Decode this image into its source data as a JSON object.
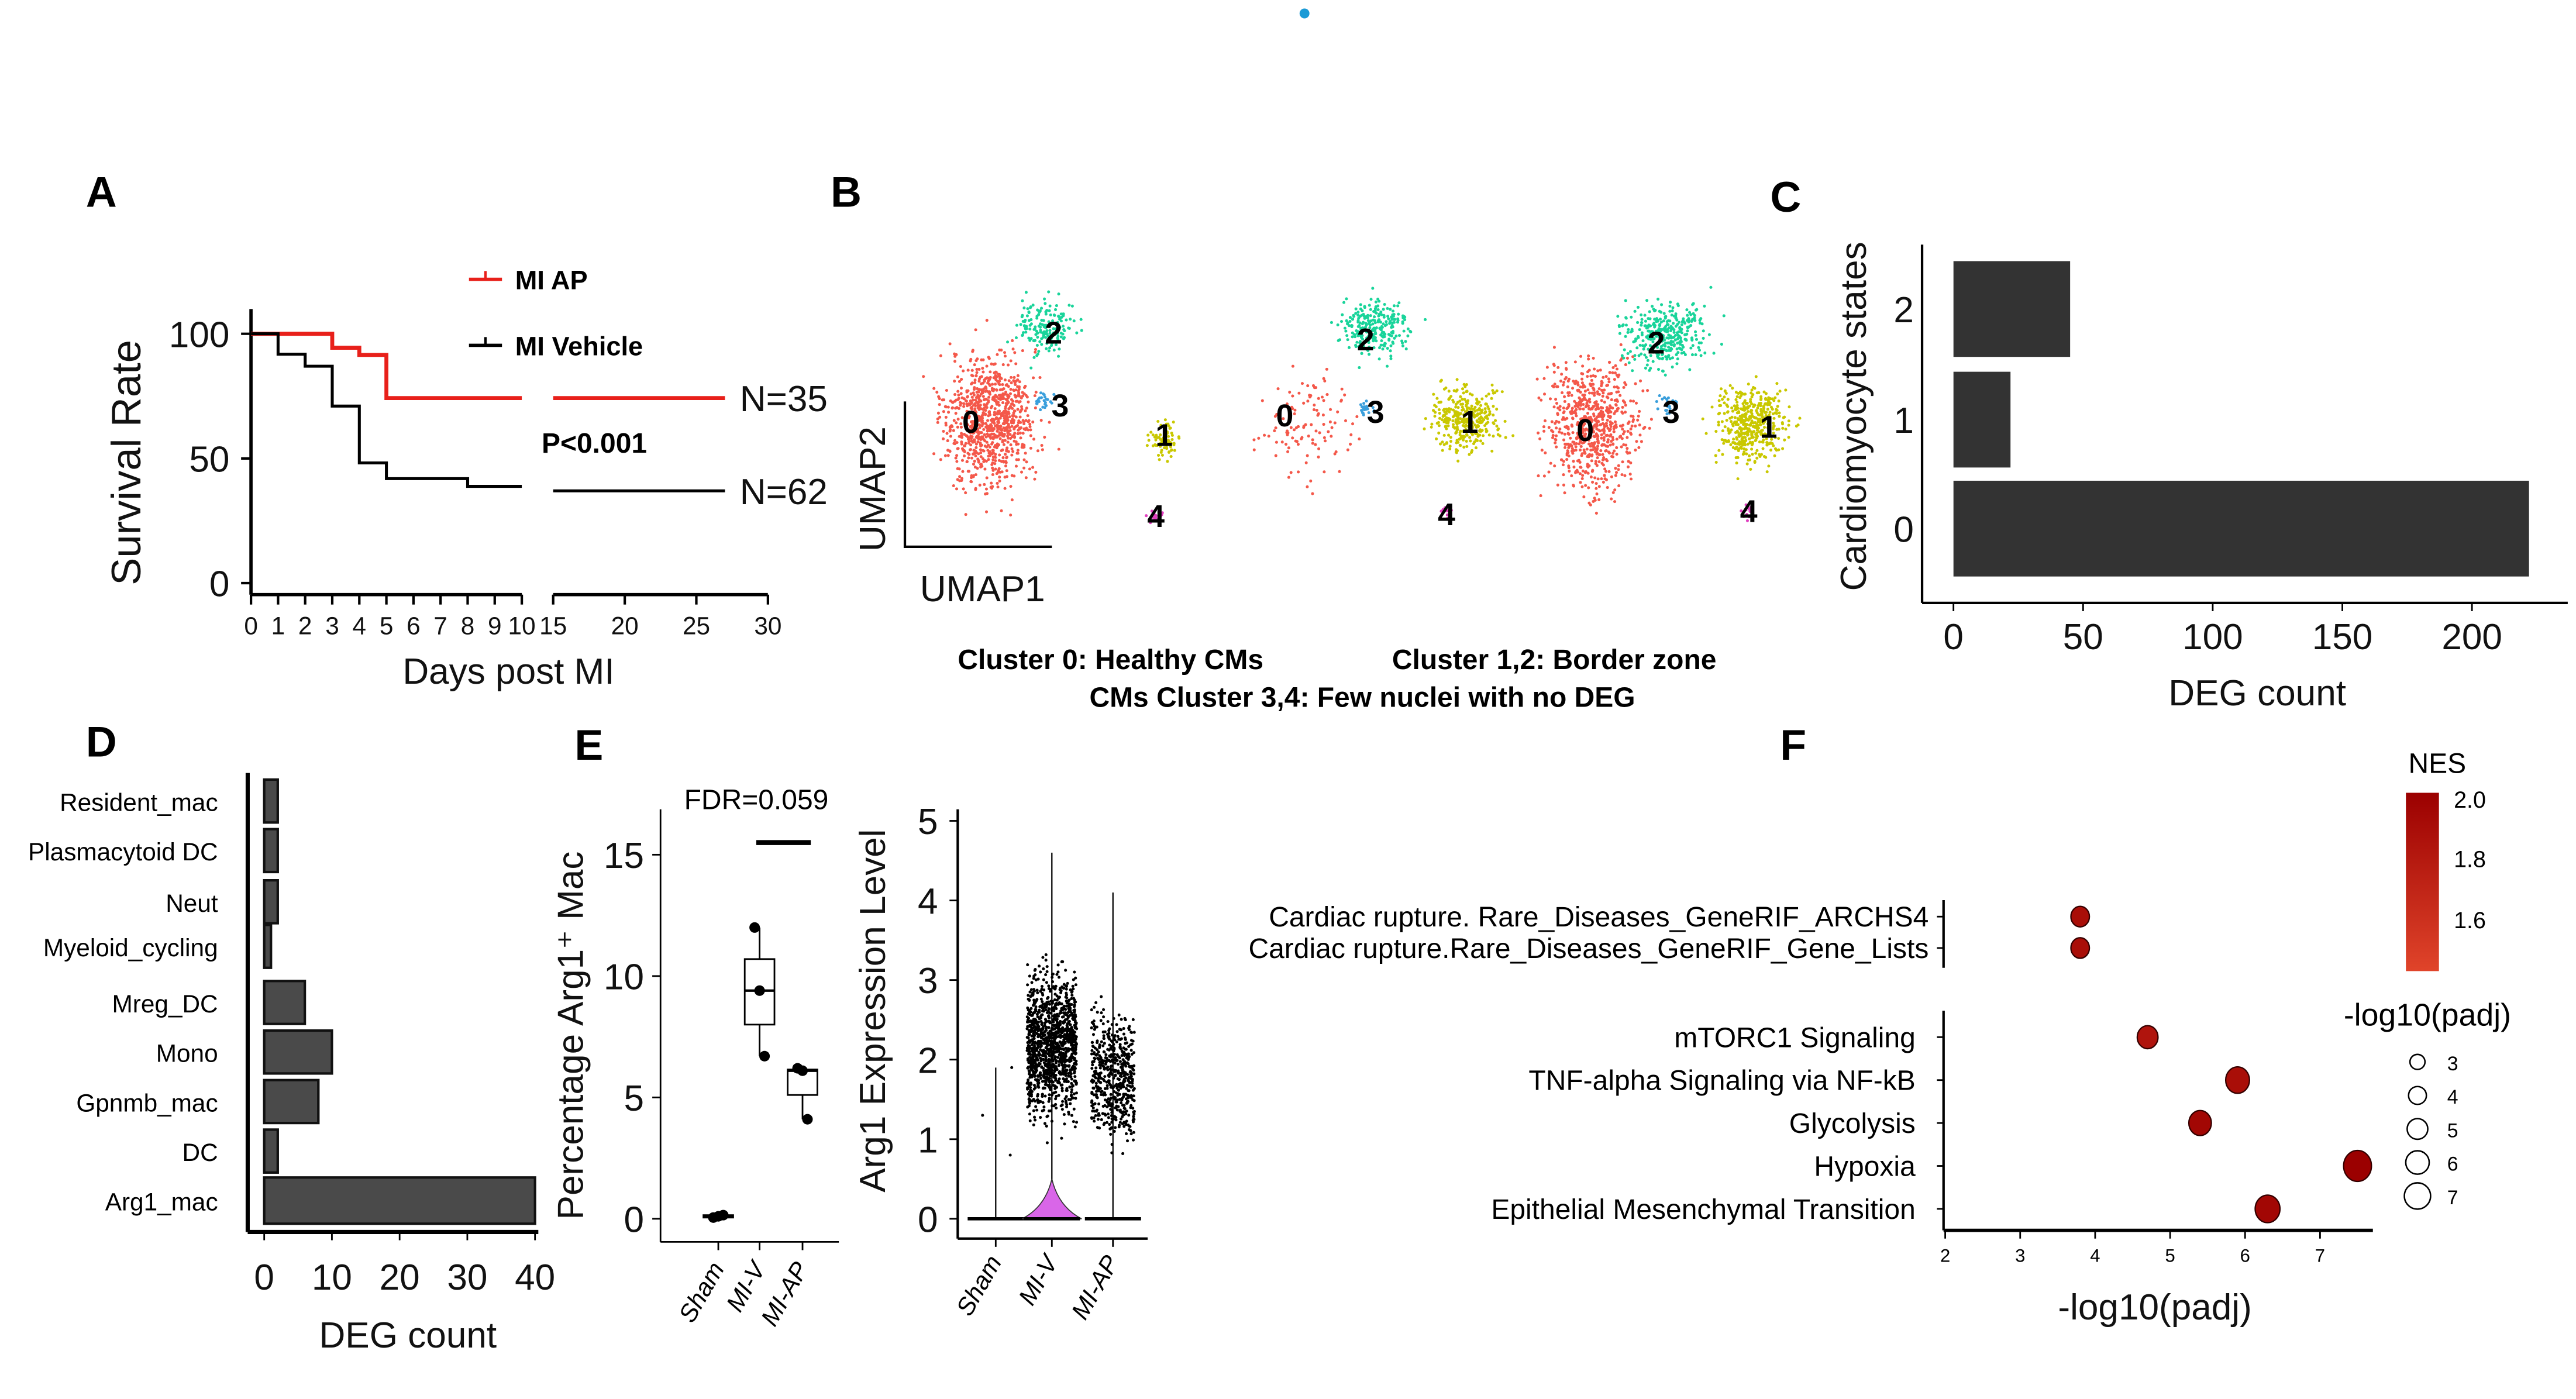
{
  "panel_labels": {
    "A": "A",
    "B": "B",
    "C": "C",
    "D": "D",
    "E": "E",
    "F": "F"
  },
  "accent_dot_color": "#1a9ad6",
  "chart_data": [
    {
      "panel": "A",
      "type": "line",
      "title": "",
      "xlabel": "Days post MI",
      "ylabel": "Survival Rate",
      "x_ticks": [
        0,
        1,
        2,
        3,
        4,
        5,
        6,
        7,
        8,
        9,
        10,
        15,
        20,
        25,
        30
      ],
      "x_axis_break": [
        10,
        15
      ],
      "y_ticks": [
        0,
        50,
        100
      ],
      "ylim": [
        0,
        105
      ],
      "annotation": "P<0.001",
      "series": [
        {
          "name": "MI AP",
          "color": "#e8201a",
          "n_label": "N=35",
          "steps": [
            [
              0,
              100
            ],
            [
              3,
              94.4
            ],
            [
              4,
              91.5
            ],
            [
              5,
              74.2
            ],
            [
              10,
              74.2
            ],
            [
              15,
              74.2
            ],
            [
              27,
              74.2
            ]
          ]
        },
        {
          "name": "MI Vehicle",
          "color": "#000000",
          "n_label": "N=62",
          "steps": [
            [
              0,
              100
            ],
            [
              1,
              91.8
            ],
            [
              2,
              87
            ],
            [
              3,
              71
            ],
            [
              4,
              48.2
            ],
            [
              5,
              41.9
            ],
            [
              8,
              38.8
            ],
            [
              10,
              38.8
            ],
            [
              15,
              37
            ],
            [
              27,
              37
            ]
          ]
        }
      ]
    },
    {
      "panel": "B",
      "type": "scatter",
      "xlabel": "UMAP1",
      "ylabel": "UMAP2",
      "clusters": [
        {
          "id": "0",
          "color": "#f4584a"
        },
        {
          "id": "1",
          "color": "#c9c800"
        },
        {
          "id": "2",
          "color": "#19d49a"
        },
        {
          "id": "3",
          "color": "#3a9fdc"
        },
        {
          "id": "4",
          "color": "#e03fbf"
        }
      ],
      "captions": [
        "Cluster 0: Healthy CMs",
        "Cluster 1,2: Border zone",
        "CMs Cluster 3,4: Few nuclei with no DEG"
      ]
    },
    {
      "panel": "C",
      "type": "bar",
      "orientation": "horizontal",
      "categories": [
        "2",
        "1",
        "0"
      ],
      "values": [
        45,
        22,
        222
      ],
      "xlabel": "DEG count",
      "ylabel": "Cardiomyocyte states",
      "x_ticks": [
        0,
        50,
        100,
        150,
        200
      ],
      "xlim": [
        0,
        230
      ],
      "color": "#333333"
    },
    {
      "panel": "D",
      "type": "bar",
      "orientation": "horizontal",
      "categories": [
        "Resident_mac",
        "Plasmacytoid DC",
        "Neut",
        "Myeloid_cycling",
        "Mreg_DC",
        "Mono",
        "Gpnmb_mac",
        "DC",
        "Arg1_mac"
      ],
      "values": [
        2,
        2,
        2,
        1,
        6,
        10,
        8,
        2,
        40
      ],
      "xlabel": "DEG count",
      "x_ticks": [
        0,
        10,
        20,
        30,
        40
      ],
      "xlim": [
        0,
        40
      ],
      "color": "#4a4a4a"
    },
    {
      "panel": "E",
      "type": "box",
      "ylabel": "Percentage Arg1⁺ Mac",
      "categories": [
        "Sham",
        "MI-V",
        "MI-AP"
      ],
      "y_ticks": [
        0,
        5,
        10,
        15
      ],
      "annotation": "FDR=0.059",
      "groups": [
        {
          "points": [
            0.05,
            0.1,
            0.15
          ],
          "q1": 0.05,
          "median": 0.1,
          "q3": 0.15,
          "min": 0.05,
          "max": 0.15
        },
        {
          "points": [
            12,
            9.4,
            6.7
          ],
          "q1": 8,
          "median": 9.4,
          "q3": 10.7,
          "min": 6.7,
          "max": 12
        },
        {
          "points": [
            6.2,
            6.1,
            4.1
          ],
          "q1": 5.1,
          "median": 6.1,
          "q3": 6.15,
          "min": 4.1,
          "max": 6.2
        }
      ]
    },
    {
      "panel": "E",
      "type": "violin",
      "ylabel": "Arg1 Expression Level",
      "categories": [
        "Sham",
        "MI-V",
        "MI-AP"
      ],
      "y_ticks": [
        0,
        1,
        2,
        3,
        4,
        5
      ],
      "max_values": [
        1.9,
        4.6,
        4.1
      ],
      "violin_color": "#d966e8"
    },
    {
      "panel": "F",
      "type": "scatter",
      "xlabel": "-log10(padj)",
      "x_ticks": [
        2,
        3,
        4,
        5,
        6,
        7
      ],
      "terms": [
        {
          "label": "Cardiac rupture. Rare_Diseases_GeneRIF_ARCHS4",
          "x": 3.8,
          "nes": 1.9,
          "group": "upper"
        },
        {
          "label": "Cardiac rupture.Rare_Diseases_GeneRIF_Gene_Lists",
          "x": 3.8,
          "nes": 1.9,
          "group": "upper"
        },
        {
          "label": "mTORC1 Signaling",
          "x": 4.7,
          "nes": 1.85,
          "group": "lower"
        },
        {
          "label": "TNF-alpha Signaling via NF-kB",
          "x": 5.9,
          "nes": 1.9,
          "group": "lower"
        },
        {
          "label": "Glycolysis",
          "x": 5.4,
          "nes": 1.95,
          "group": "lower"
        },
        {
          "label": "Hypoxia",
          "x": 7.5,
          "nes": 2.0,
          "group": "lower"
        },
        {
          "label": "Epithelial Mesenchymal Transition",
          "x": 6.3,
          "nes": 1.95,
          "group": "lower"
        }
      ],
      "color_legend": {
        "title": "NES",
        "ticks": [
          "2.0",
          "1.8",
          "1.6"
        ],
        "high_color": "#9b0000",
        "low_color": "#e0442a"
      },
      "size_legend": {
        "title": "-log10(padj)",
        "values": [
          3,
          4,
          5,
          6,
          7
        ]
      }
    }
  ]
}
